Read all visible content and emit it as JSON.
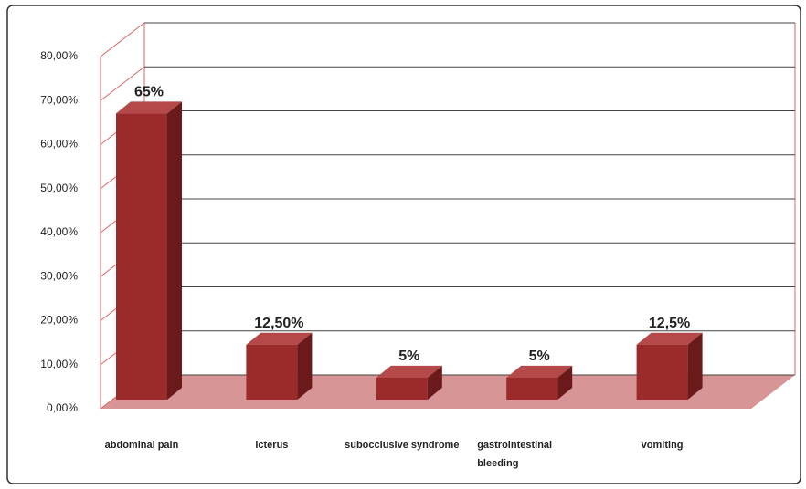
{
  "chart_data": {
    "type": "bar3d",
    "categories": [
      "abdominal pain",
      "icterus",
      "subocclusive syndrome",
      "gastrointestinal bleeding",
      "vomiting"
    ],
    "values": [
      65,
      12.5,
      5,
      5,
      12.5
    ],
    "value_labels": [
      "65%",
      "12,50%",
      "5%",
      "5%",
      "12,5%"
    ],
    "color": "#9b2b2b",
    "ylim": [
      0,
      80
    ],
    "yticks": [
      {
        "value": 0,
        "label": "0,00%"
      },
      {
        "value": 10,
        "label": "10,00%"
      },
      {
        "value": 20,
        "label": "20,00%"
      },
      {
        "value": 30,
        "label": "30,00%"
      },
      {
        "value": 40,
        "label": "40,00%"
      },
      {
        "value": 50,
        "label": "50,00%"
      },
      {
        "value": 60,
        "label": "60,00%"
      },
      {
        "value": 70,
        "label": "70,00%"
      },
      {
        "value": 80,
        "label": "80,00%"
      }
    ],
    "grid": true
  }
}
